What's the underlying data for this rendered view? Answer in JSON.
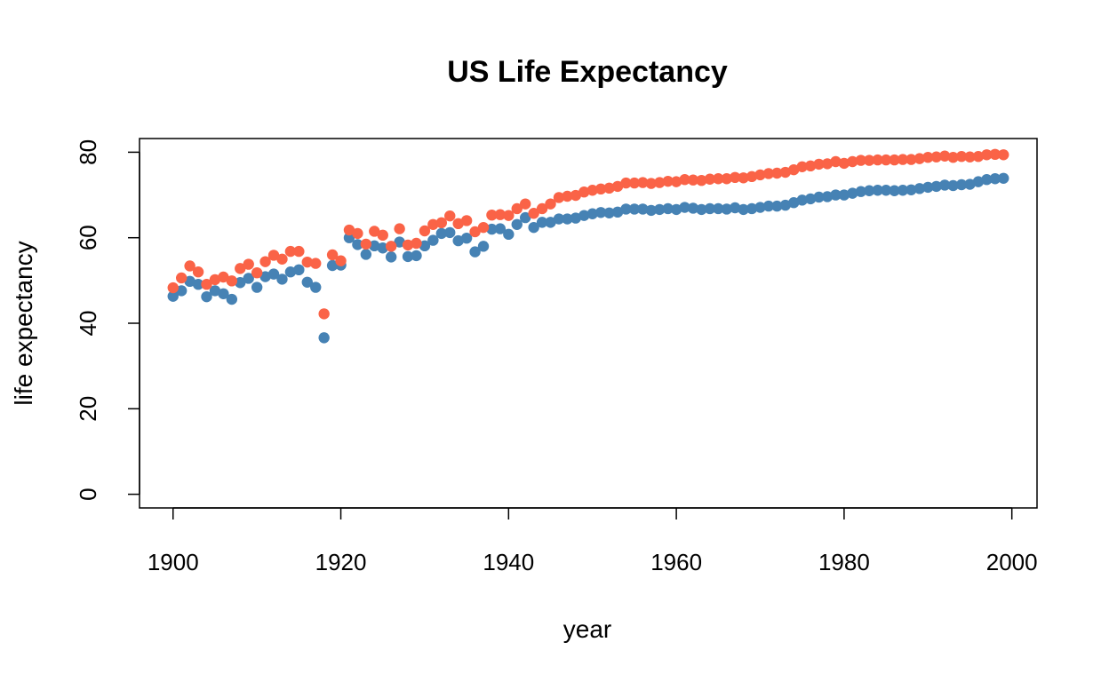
{
  "chart_data": {
    "type": "scatter",
    "title": "US Life Expectancy",
    "xlabel": "year",
    "ylabel": "life expectancy",
    "xlim": [
      1896,
      2003
    ],
    "ylim": [
      -3.2,
      83.2
    ],
    "x_ticks": [
      1900,
      1920,
      1940,
      1960,
      1980,
      2000
    ],
    "y_ticks": [
      0,
      20,
      40,
      60,
      80
    ],
    "grid": false,
    "legend": "none",
    "x": [
      1900,
      1901,
      1902,
      1903,
      1904,
      1905,
      1906,
      1907,
      1908,
      1909,
      1910,
      1911,
      1912,
      1913,
      1914,
      1915,
      1916,
      1917,
      1918,
      1919,
      1920,
      1921,
      1922,
      1923,
      1924,
      1925,
      1926,
      1927,
      1928,
      1929,
      1930,
      1931,
      1932,
      1933,
      1934,
      1935,
      1936,
      1937,
      1938,
      1939,
      1940,
      1941,
      1942,
      1943,
      1944,
      1945,
      1946,
      1947,
      1948,
      1949,
      1950,
      1951,
      1952,
      1953,
      1954,
      1955,
      1956,
      1957,
      1958,
      1959,
      1960,
      1961,
      1962,
      1963,
      1964,
      1965,
      1966,
      1967,
      1968,
      1969,
      1970,
      1971,
      1972,
      1973,
      1974,
      1975,
      1976,
      1977,
      1978,
      1979,
      1980,
      1981,
      1982,
      1983,
      1984,
      1985,
      1986,
      1987,
      1988,
      1989,
      1990,
      1991,
      1992,
      1993,
      1994,
      1995,
      1996,
      1997,
      1998,
      1999
    ],
    "series": [
      {
        "color": "#4682B4",
        "values": [
          46.3,
          47.6,
          49.8,
          49.1,
          46.2,
          47.6,
          46.9,
          45.6,
          49.5,
          50.5,
          48.4,
          50.9,
          51.5,
          50.3,
          52.0,
          52.5,
          49.6,
          48.4,
          36.6,
          53.5,
          53.6,
          60.0,
          58.4,
          56.1,
          58.1,
          57.6,
          55.5,
          59.0,
          55.6,
          55.8,
          58.1,
          59.4,
          61.0,
          61.2,
          59.3,
          59.9,
          56.7,
          58.0,
          62.0,
          62.1,
          60.8,
          63.1,
          64.7,
          62.4,
          63.6,
          63.6,
          64.4,
          64.4,
          64.6,
          65.2,
          65.6,
          65.9,
          65.8,
          66.0,
          66.7,
          66.7,
          66.7,
          66.4,
          66.6,
          66.8,
          66.6,
          67.1,
          66.9,
          66.6,
          66.8,
          66.8,
          66.7,
          67.0,
          66.6,
          66.8,
          67.1,
          67.4,
          67.4,
          67.6,
          68.2,
          68.8,
          69.1,
          69.5,
          69.6,
          70.0,
          70.0,
          70.4,
          70.8,
          71.0,
          71.1,
          71.1,
          71.0,
          71.1,
          71.2,
          71.5,
          71.8,
          72.0,
          72.3,
          72.2,
          72.4,
          72.5,
          73.1,
          73.6,
          73.8,
          73.9
        ]
      },
      {
        "color": "#FA6347",
        "values": [
          48.3,
          50.6,
          53.4,
          52.0,
          49.1,
          50.2,
          50.8,
          49.9,
          52.8,
          53.8,
          51.8,
          54.4,
          55.9,
          55.0,
          56.8,
          56.8,
          54.3,
          54.0,
          42.2,
          56.0,
          54.6,
          61.8,
          61.0,
          58.5,
          61.5,
          60.6,
          58.0,
          62.1,
          58.3,
          58.7,
          61.6,
          63.1,
          63.5,
          65.1,
          63.3,
          64.0,
          61.4,
          62.4,
          65.3,
          65.4,
          65.2,
          66.8,
          67.9,
          65.7,
          66.8,
          67.9,
          69.4,
          69.7,
          69.9,
          70.7,
          71.1,
          71.4,
          71.6,
          72.0,
          72.8,
          72.8,
          72.9,
          72.7,
          72.9,
          73.2,
          73.1,
          73.6,
          73.5,
          73.4,
          73.7,
          73.8,
          73.8,
          74.1,
          74.0,
          74.3,
          74.7,
          75.0,
          75.1,
          75.3,
          75.9,
          76.6,
          76.8,
          77.2,
          77.3,
          77.8,
          77.4,
          77.8,
          78.1,
          78.1,
          78.2,
          78.2,
          78.2,
          78.3,
          78.3,
          78.5,
          78.8,
          78.9,
          79.1,
          78.8,
          79.0,
          78.9,
          79.0,
          79.4,
          79.5,
          79.4
        ]
      }
    ]
  }
}
